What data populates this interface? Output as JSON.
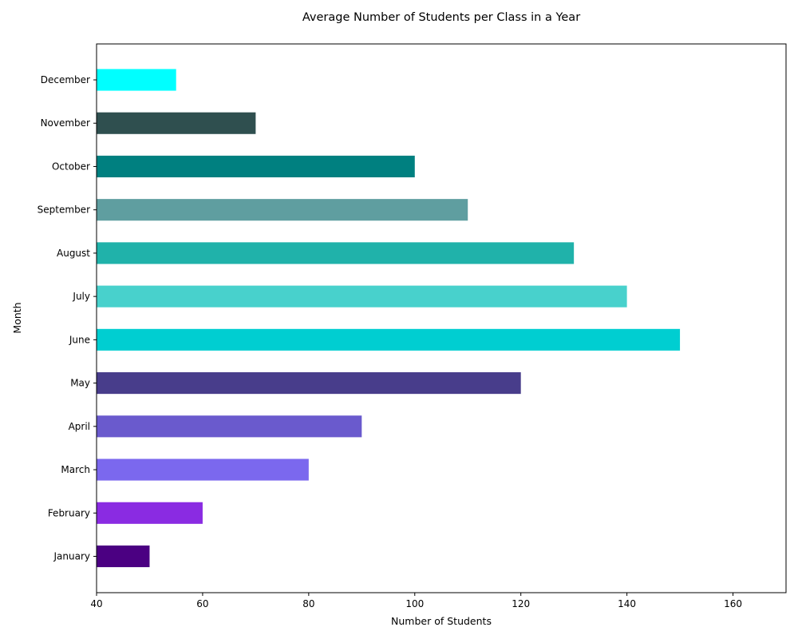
{
  "chart_data": {
    "type": "bar",
    "orientation": "horizontal",
    "title": "Average Number of Students per Class in a Year",
    "xlabel": "Number of Students",
    "ylabel": "Month",
    "xlim": [
      40,
      170
    ],
    "xticks": [
      40,
      60,
      80,
      100,
      120,
      140,
      160
    ],
    "categories": [
      "January",
      "February",
      "March",
      "April",
      "May",
      "June",
      "July",
      "August",
      "September",
      "October",
      "November",
      "December"
    ],
    "values": [
      50,
      60,
      80,
      90,
      120,
      150,
      140,
      130,
      110,
      100,
      70,
      55
    ],
    "colors": [
      "#4b0082",
      "#8a2be2",
      "#7b68ee",
      "#6a5acd",
      "#483d8b",
      "#00ced1",
      "#48d1cc",
      "#20b2aa",
      "#5f9ea0",
      "#008080",
      "#2f4f4f",
      "#00ffff"
    ],
    "grid": false,
    "legend": "none"
  }
}
